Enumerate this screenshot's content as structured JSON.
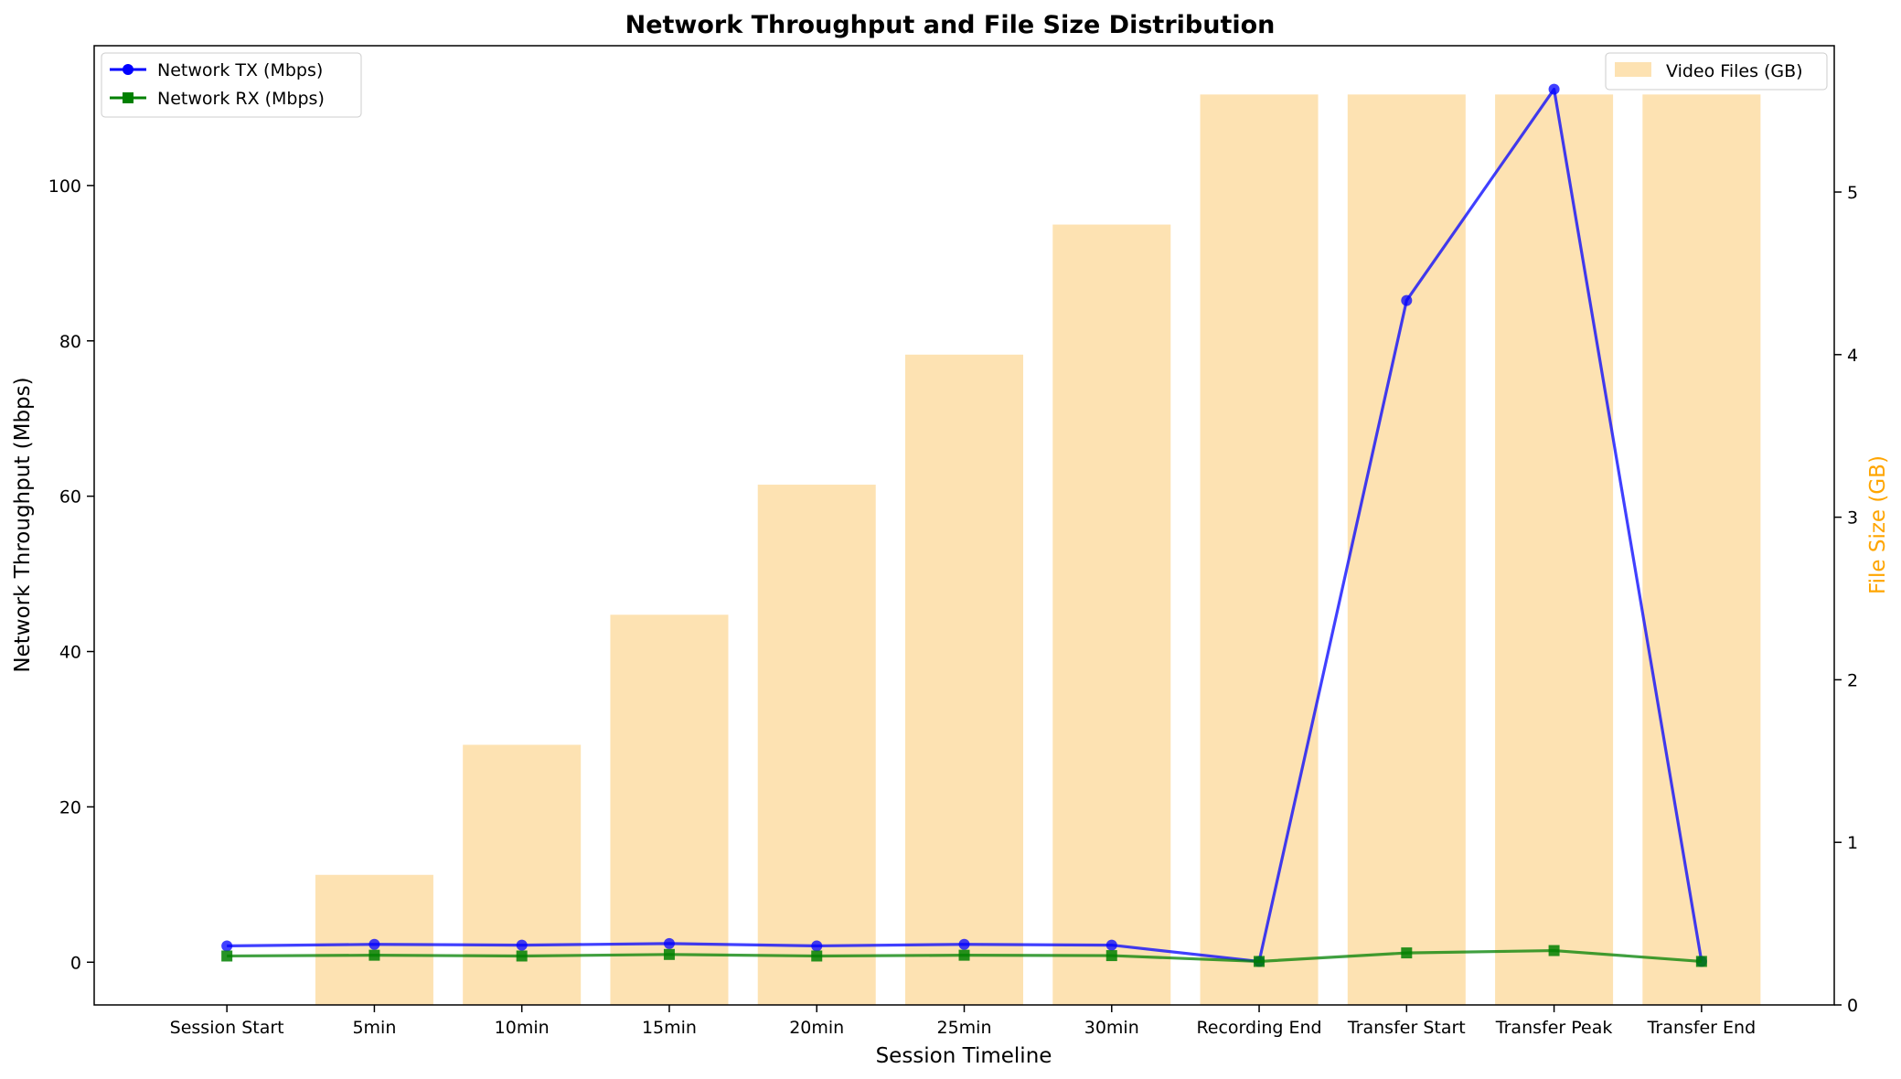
{
  "chart_data": {
    "type": "bar+line",
    "title": "Network Throughput and File Size Distribution",
    "xlabel": "Session Timeline",
    "ylabel_left": "Network Throughput (Mbps)",
    "ylabel_right": "File Size (GB)",
    "categories": [
      "Session Start",
      "5min",
      "10min",
      "15min",
      "20min",
      "25min",
      "30min",
      "Recording End",
      "Transfer Start",
      "Transfer Peak",
      "Transfer End"
    ],
    "ylim_left": [
      -5.5,
      118
    ],
    "ylim_right": [
      0,
      5.9
    ],
    "yticks_left": [
      0,
      20,
      40,
      60,
      80,
      100
    ],
    "yticks_right": [
      0,
      1,
      2,
      3,
      4,
      5
    ],
    "bars": {
      "name": "Video Files (GB)",
      "axis": "right",
      "color": "#fde2b2",
      "values": [
        0,
        0.8,
        1.6,
        2.4,
        3.2,
        4.0,
        4.8,
        5.6,
        5.6,
        5.6,
        5.6
      ]
    },
    "series": [
      {
        "name": "Network TX (Mbps)",
        "axis": "left",
        "color": "#0000ff",
        "marker": "circle",
        "values": [
          2.1,
          2.3,
          2.2,
          2.4,
          2.1,
          2.3,
          2.2,
          0.1,
          85.2,
          112.4,
          0.1
        ]
      },
      {
        "name": "Network RX (Mbps)",
        "axis": "left",
        "color": "#008000",
        "marker": "square",
        "values": [
          0.8,
          0.9,
          0.8,
          1.0,
          0.8,
          0.9,
          0.85,
          0.1,
          1.2,
          1.5,
          0.1
        ]
      }
    ],
    "legend_left": "top-left",
    "legend_right": "top-right",
    "grid": false
  }
}
